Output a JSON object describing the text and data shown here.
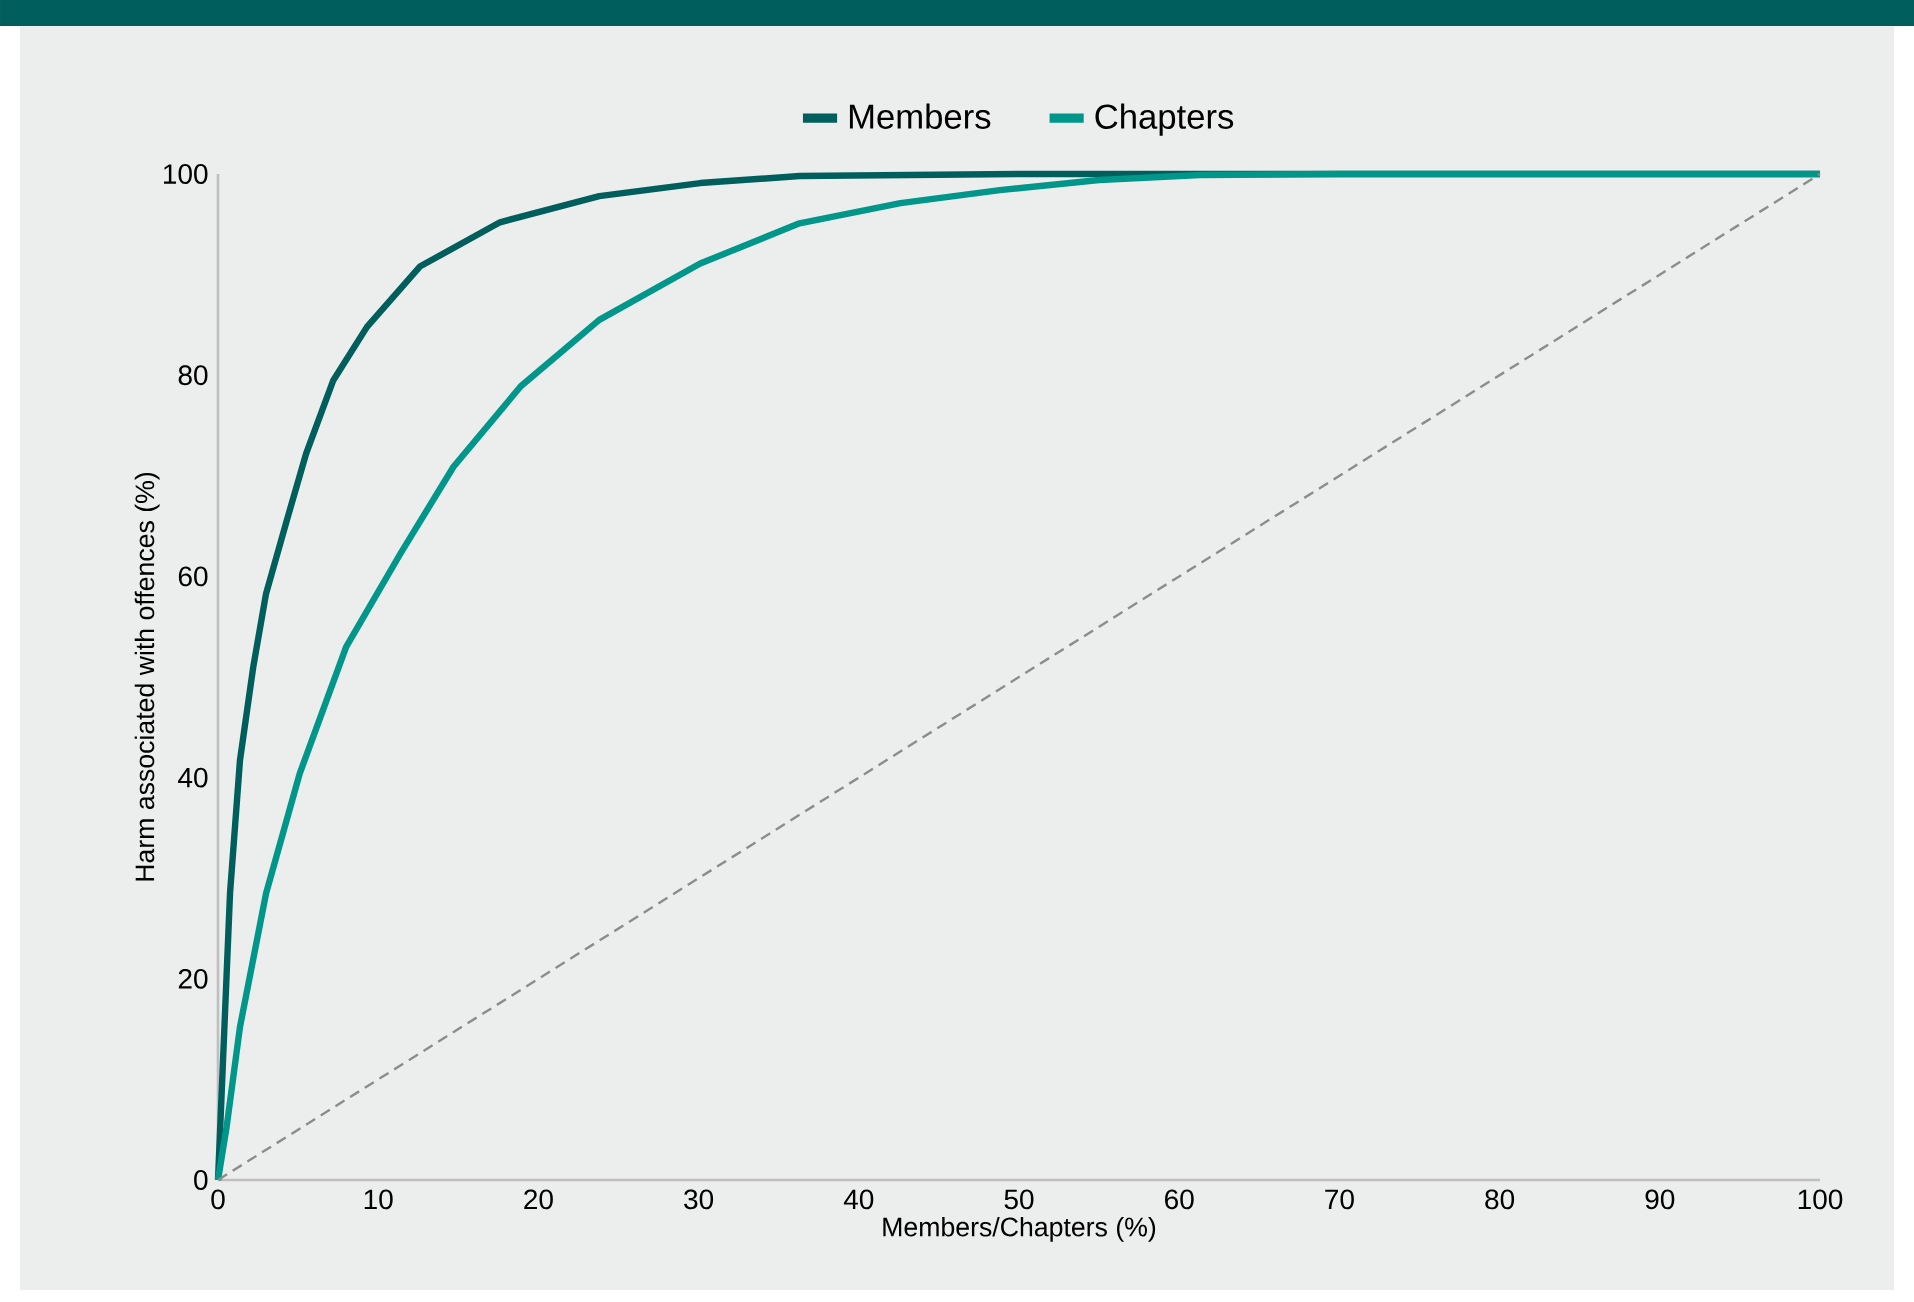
{
  "chart_data": {
    "type": "line",
    "xlabel": "Members/Chapters (%)",
    "ylabel": "Harm associated with offences (%)",
    "xlim": [
      0,
      100
    ],
    "ylim": [
      0,
      100
    ],
    "xticks": [
      0,
      10,
      20,
      30,
      40,
      50,
      60,
      70,
      80,
      90,
      100
    ],
    "yticks": [
      0,
      20,
      40,
      60,
      80,
      100
    ],
    "legend": "top",
    "grid": false,
    "series": [
      {
        "name": "Members",
        "color": "#005f5c",
        "x": [
          0,
          0.75,
          1.37,
          2.2,
          3.0,
          4.3,
          5.5,
          7.2,
          9.3,
          12.6,
          17.6,
          23.8,
          30.1,
          36.3,
          50,
          60,
          70,
          80,
          90,
          100
        ],
        "values": [
          0,
          28.5,
          41.7,
          51,
          58.3,
          65.6,
          72.2,
          79.5,
          84.8,
          90.8,
          95.2,
          97.8,
          99.1,
          99.8,
          100,
          100,
          100,
          100,
          100,
          100
        ]
      },
      {
        "name": "Chapters",
        "color": "#00968a",
        "x": [
          0,
          0.54,
          1.37,
          3.0,
          5.1,
          8.0,
          11.4,
          14.7,
          18.9,
          23.8,
          30.1,
          36.3,
          42.6,
          48.8,
          55,
          61.3,
          70,
          80,
          90,
          100
        ],
        "values": [
          0,
          5.3,
          15.2,
          28.5,
          40.4,
          53,
          62.3,
          70.9,
          78.9,
          85.5,
          91.1,
          95.1,
          97.1,
          98.4,
          99.4,
          99.9,
          100,
          100,
          100,
          100
        ]
      },
      {
        "color": "#8c8c8c",
        "line_style": "dashed",
        "x": [
          0,
          100
        ],
        "values": [
          0,
          100
        ]
      }
    ]
  }
}
